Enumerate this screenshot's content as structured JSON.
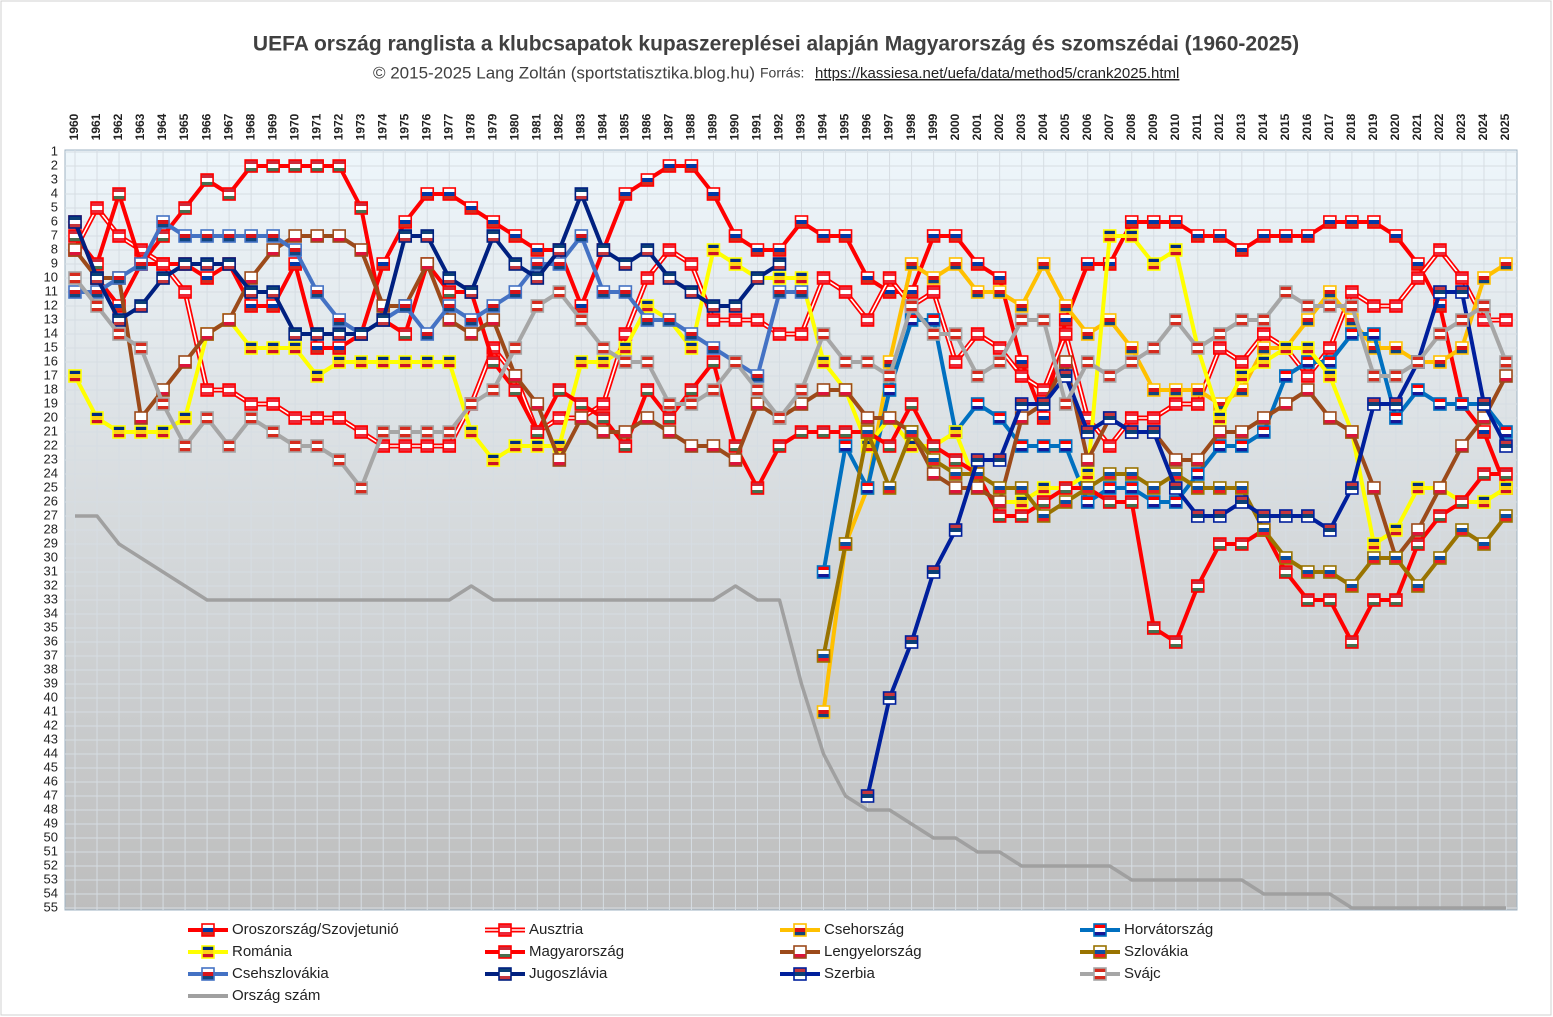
{
  "chart_data": {
    "type": "line",
    "title": "UEFA ország ranglista a klubcsapatok kupaszereplései alapján Magyarország és szomszédai (1960-2025)",
    "subtitle": "© 2015-2025 Lang Zoltán (sportstatisztika.blog.hu)",
    "source_label": "Forrás:",
    "source_url": "https://kassiesa.net/uefa/data/method5/crank2025.html",
    "categories": [
      "1960",
      "1961",
      "1962",
      "1963",
      "1964",
      "1965",
      "1966",
      "1967",
      "1968",
      "1969",
      "1970",
      "1971",
      "1972",
      "1973",
      "1974",
      "1975",
      "1976",
      "1977",
      "1978",
      "1979",
      "1980",
      "1981",
      "1982",
      "1983",
      "1984",
      "1985",
      "1986",
      "1987",
      "1988",
      "1989",
      "1990",
      "1991",
      "1992",
      "1993",
      "1994",
      "1995",
      "1996",
      "1997",
      "1998",
      "1999",
      "2000",
      "2001",
      "2002",
      "2003",
      "2004",
      "2005",
      "2006",
      "2007",
      "2008",
      "2009",
      "2010",
      "2011",
      "2012",
      "2013",
      "2014",
      "2015",
      "2016",
      "2017",
      "2018",
      "2019",
      "2020",
      "2021",
      "2022",
      "2023",
      "2024",
      "2025"
    ],
    "ylim": [
      1,
      55
    ],
    "y_inverted": true,
    "yticks": [
      1,
      2,
      3,
      4,
      5,
      6,
      7,
      8,
      9,
      10,
      11,
      12,
      13,
      14,
      15,
      16,
      17,
      18,
      19,
      20,
      21,
      22,
      23,
      24,
      25,
      26,
      27,
      28,
      29,
      30,
      31,
      32,
      33,
      34,
      35,
      36,
      37,
      38,
      39,
      40,
      41,
      42,
      43,
      44,
      45,
      46,
      47,
      48,
      49,
      50,
      51,
      52,
      53,
      54,
      55
    ],
    "grid": true,
    "series": [
      {
        "name": "Oroszország/Szovjetunió",
        "color": "#ff0000",
        "flag": [
          "#ffffff",
          "#0039a6",
          "#d52b1e"
        ],
        "values": [
          6,
          10,
          12,
          9,
          9,
          9,
          10,
          9,
          12,
          12,
          9,
          15,
          15,
          14,
          9,
          6,
          4,
          4,
          5,
          6,
          7,
          8,
          8,
          12,
          8,
          4,
          3,
          2,
          2,
          4,
          7,
          8,
          8,
          6,
          7,
          7,
          10,
          11,
          11,
          7,
          7,
          9,
          10,
          16,
          20,
          13,
          9,
          9,
          6,
          6,
          6,
          7,
          7,
          8,
          7,
          7,
          7,
          6,
          6,
          6,
          7,
          9,
          12,
          19,
          21,
          25
        ]
      },
      {
        "name": "Ausztria",
        "color": "#ff0000",
        "style": "double",
        "flag": [
          "#ed2939",
          "#ffffff",
          "#ed2939"
        ],
        "values": [
          8,
          5,
          7,
          8,
          9,
          11,
          18,
          18,
          19,
          19,
          20,
          20,
          20,
          21,
          22,
          22,
          22,
          22,
          19,
          15,
          17,
          21,
          20,
          20,
          19,
          14,
          10,
          8,
          9,
          13,
          13,
          13,
          14,
          14,
          10,
          11,
          13,
          10,
          12,
          11,
          16,
          14,
          15,
          17,
          18,
          14,
          20,
          22,
          20,
          20,
          19,
          19,
          15,
          16,
          14,
          15,
          17,
          15,
          11,
          12,
          12,
          10,
          8,
          10,
          13,
          13
        ]
      },
      {
        "name": "Csehország",
        "color": "#ffc000",
        "flag": [
          "#ffffff",
          "#d7141a",
          "#11457e"
        ],
        "values": [
          null,
          null,
          null,
          null,
          null,
          null,
          null,
          null,
          null,
          null,
          null,
          null,
          null,
          null,
          null,
          null,
          null,
          null,
          null,
          null,
          null,
          null,
          null,
          null,
          null,
          null,
          null,
          null,
          null,
          null,
          null,
          null,
          null,
          null,
          41,
          29,
          25,
          16,
          9,
          10,
          9,
          11,
          11,
          12,
          9,
          12,
          14,
          13,
          15,
          18,
          18,
          18,
          19,
          18,
          15,
          15,
          13,
          11,
          13,
          15,
          15,
          16,
          16,
          15,
          10,
          9
        ]
      },
      {
        "name": "Horvátország",
        "color": "#0070c0",
        "flag": [
          "#ff0000",
          "#ffffff",
          "#171796"
        ],
        "values": [
          null,
          null,
          null,
          null,
          null,
          null,
          null,
          null,
          null,
          null,
          null,
          null,
          null,
          null,
          null,
          null,
          null,
          null,
          null,
          null,
          null,
          null,
          null,
          null,
          null,
          null,
          null,
          null,
          null,
          null,
          null,
          null,
          null,
          null,
          31,
          22,
          25,
          18,
          13,
          13,
          21,
          19,
          20,
          22,
          22,
          22,
          26,
          25,
          25,
          26,
          26,
          24,
          22,
          22,
          21,
          17,
          16,
          16,
          14,
          14,
          20,
          18,
          19,
          19,
          19,
          21
        ]
      },
      {
        "name": "Románia",
        "color": "#ffff00",
        "flag": [
          "#002b7f",
          "#fcd116",
          "#ce1126"
        ],
        "values": [
          17,
          20,
          21,
          21,
          21,
          20,
          14,
          13,
          15,
          15,
          15,
          17,
          16,
          16,
          16,
          16,
          16,
          16,
          21,
          23,
          22,
          22,
          22,
          16,
          16,
          15,
          12,
          13,
          15,
          8,
          9,
          10,
          10,
          10,
          16,
          18,
          22,
          20,
          22,
          22,
          21,
          25,
          26,
          26,
          25,
          25,
          24,
          7,
          7,
          9,
          8,
          15,
          20,
          17,
          16,
          15,
          15,
          17,
          21,
          29,
          28,
          25,
          25,
          26,
          26,
          25
        ]
      },
      {
        "name": "Magyarország",
        "color": "#ff0000",
        "flag": [
          "#ce2939",
          "#ffffff",
          "#477050"
        ],
        "values": [
          7,
          9,
          4,
          9,
          7,
          5,
          3,
          4,
          2,
          2,
          2,
          2,
          2,
          5,
          13,
          14,
          9,
          11,
          11,
          16,
          18,
          21,
          18,
          19,
          20,
          22,
          18,
          20,
          18,
          16,
          22,
          25,
          22,
          21,
          21,
          21,
          21,
          22,
          19,
          22,
          23,
          24,
          27,
          27,
          26,
          25,
          25,
          26,
          26,
          35,
          36,
          32,
          29,
          29,
          28,
          31,
          33,
          33,
          36,
          33,
          33,
          29,
          27,
          26,
          24,
          24
        ]
      },
      {
        "name": "Lengyelország",
        "color": "#9c4a1a",
        "flag": [
          "#ffffff",
          "#ffffff",
          "#dc143c"
        ],
        "values": [
          8,
          10,
          10,
          20,
          18,
          16,
          14,
          13,
          10,
          8,
          7,
          7,
          7,
          8,
          12,
          12,
          9,
          13,
          14,
          13,
          17,
          19,
          23,
          20,
          21,
          21,
          20,
          21,
          22,
          22,
          23,
          19,
          20,
          19,
          18,
          18,
          20,
          20,
          21,
          24,
          25,
          25,
          26,
          20,
          19,
          16,
          23,
          20,
          21,
          21,
          23,
          23,
          21,
          21,
          20,
          19,
          18,
          20,
          21,
          25,
          30,
          28,
          25,
          22,
          20,
          17
        ]
      },
      {
        "name": "Szlovákia",
        "color": "#997300",
        "flag": [
          "#ffffff",
          "#0b4ea2",
          "#ee1c25"
        ],
        "values": [
          null,
          null,
          null,
          null,
          null,
          null,
          null,
          null,
          null,
          null,
          null,
          null,
          null,
          null,
          null,
          null,
          null,
          null,
          null,
          null,
          null,
          null,
          null,
          null,
          null,
          null,
          null,
          null,
          null,
          null,
          null,
          null,
          null,
          null,
          37,
          29,
          21,
          25,
          21,
          23,
          24,
          24,
          25,
          25,
          27,
          26,
          25,
          24,
          24,
          25,
          24,
          25,
          25,
          25,
          28,
          30,
          31,
          31,
          32,
          30,
          30,
          32,
          30,
          28,
          29,
          27
        ]
      },
      {
        "name": "Csehszlovákia",
        "color": "#4472c4",
        "flag": [
          "#ffffff",
          "#d7141a",
          "#11457e"
        ],
        "values": [
          11,
          11,
          10,
          9,
          6,
          7,
          7,
          7,
          7,
          7,
          8,
          11,
          13,
          14,
          13,
          12,
          14,
          12,
          13,
          12,
          11,
          9,
          9,
          7,
          11,
          11,
          13,
          13,
          14,
          15,
          16,
          17,
          11,
          11,
          null,
          null,
          null,
          null,
          null,
          null,
          null,
          null,
          null,
          null,
          null,
          null,
          null,
          null,
          null,
          null,
          null,
          null,
          null,
          null,
          null,
          null,
          null,
          null,
          null,
          null,
          null,
          null,
          null,
          null,
          null,
          null
        ]
      },
      {
        "name": "Jugoszlávia",
        "color": "#002080",
        "flag": [
          "#0c4076",
          "#ffffff",
          "#c6363c"
        ],
        "values": [
          6,
          10,
          13,
          12,
          10,
          9,
          9,
          9,
          11,
          11,
          14,
          14,
          14,
          14,
          13,
          7,
          7,
          10,
          11,
          7,
          9,
          10,
          8,
          4,
          8,
          9,
          8,
          10,
          11,
          12,
          12,
          10,
          9,
          null,
          null,
          null,
          null,
          null,
          null,
          null,
          null,
          null,
          null,
          null,
          null,
          null,
          null,
          null,
          null,
          null,
          null,
          null,
          null,
          null,
          null,
          null,
          null,
          null,
          null,
          null,
          null,
          null,
          null,
          null,
          null,
          null
        ]
      },
      {
        "name": "Szerbia",
        "color": "#001f9c",
        "flag": [
          "#c6363c",
          "#0c4076",
          "#ffffff"
        ],
        "values": [
          null,
          null,
          null,
          null,
          null,
          null,
          null,
          null,
          null,
          null,
          null,
          null,
          null,
          null,
          null,
          null,
          null,
          null,
          null,
          null,
          null,
          null,
          null,
          null,
          null,
          null,
          null,
          null,
          null,
          null,
          null,
          null,
          null,
          null,
          null,
          null,
          47,
          40,
          36,
          31,
          28,
          23,
          23,
          19,
          19,
          17,
          21,
          20,
          21,
          21,
          25,
          27,
          27,
          26,
          27,
          27,
          27,
          28,
          25,
          19,
          19,
          16,
          11,
          11,
          19,
          22
        ]
      },
      {
        "name": "Svájc",
        "color": "#a6a6a6",
        "flag": [
          "#d52b1e",
          "#ffffff",
          "#d52b1e"
        ],
        "values": [
          10,
          12,
          14,
          15,
          19,
          22,
          20,
          22,
          20,
          21,
          22,
          22,
          23,
          25,
          21,
          21,
          21,
          21,
          19,
          18,
          15,
          12,
          11,
          13,
          15,
          16,
          16,
          19,
          19,
          18,
          16,
          18,
          20,
          18,
          14,
          16,
          16,
          17,
          12,
          14,
          14,
          17,
          16,
          13,
          13,
          19,
          16,
          17,
          16,
          15,
          13,
          15,
          14,
          13,
          13,
          11,
          12,
          12,
          12,
          17,
          17,
          16,
          14,
          13,
          12,
          16
        ]
      },
      {
        "name": "Ország szám",
        "color": "#a0a0a0",
        "values": [
          27,
          27,
          29,
          30,
          31,
          32,
          33,
          33,
          33,
          33,
          33,
          33,
          33,
          33,
          33,
          33,
          33,
          33,
          32,
          33,
          33,
          33,
          33,
          33,
          33,
          33,
          33,
          33,
          33,
          33,
          32,
          33,
          33,
          39,
          44,
          47,
          48,
          48,
          49,
          50,
          50,
          51,
          51,
          52,
          52,
          52,
          52,
          52,
          53,
          53,
          53,
          53,
          53,
          53,
          54,
          54,
          54,
          54,
          55,
          55,
          55,
          55,
          55,
          55,
          55,
          55
        ]
      }
    ]
  }
}
